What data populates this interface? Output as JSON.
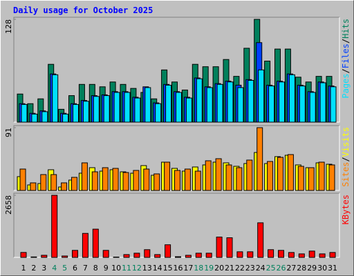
{
  "title": "Daily usage for October 2025",
  "chart_data": [
    {
      "type": "bar",
      "ylim": [
        0,
        128
      ],
      "yticks": [
        128
      ],
      "legend_separator": "/",
      "series": [
        {
          "name": "Hits",
          "color": "#00805c",
          "values": [
            35,
            23,
            29,
            72,
            16,
            33,
            47,
            47,
            44,
            50,
            47,
            42,
            37,
            29,
            65,
            50,
            40,
            72,
            69,
            69,
            78,
            57,
            92,
            128,
            76,
            91,
            91,
            56,
            50,
            57,
            57
          ]
        },
        {
          "name": "Files",
          "color": "#0040ff",
          "values": [
            23,
            11,
            14,
            60,
            11,
            23,
            27,
            33,
            34,
            38,
            38,
            31,
            44,
            24,
            47,
            38,
            31,
            55,
            44,
            48,
            51,
            46,
            53,
            99,
            46,
            51,
            60,
            46,
            38,
            50,
            45
          ]
        },
        {
          "name": "Pages",
          "color": "#00e0ff",
          "values": [
            22,
            10,
            13,
            59,
            10,
            22,
            26,
            32,
            33,
            37,
            37,
            30,
            43,
            23,
            46,
            37,
            30,
            54,
            43,
            47,
            50,
            43,
            52,
            65,
            45,
            50,
            59,
            45,
            37,
            49,
            44
          ]
        }
      ]
    },
    {
      "type": "bar",
      "ylim": [
        0,
        91
      ],
      "yticks": [
        91
      ],
      "legend_separator": "/",
      "series": [
        {
          "name": "Visits",
          "color": "#ffff00",
          "values": [
            20,
            8,
            10,
            30,
            5,
            15,
            25,
            33,
            28,
            30,
            27,
            25,
            36,
            22,
            41,
            32,
            28,
            34,
            37,
            41,
            40,
            35,
            39,
            55,
            39,
            49,
            51,
            37,
            33,
            40,
            38
          ]
        },
        {
          "name": "Sites",
          "color": "#ff8000",
          "values": [
            31,
            11,
            23,
            23,
            11,
            19,
            40,
            27,
            33,
            32,
            26,
            29,
            31,
            24,
            41,
            29,
            31,
            28,
            43,
            46,
            37,
            33,
            44,
            91,
            42,
            48,
            52,
            35,
            33,
            41,
            37
          ]
        }
      ]
    },
    {
      "type": "bar",
      "ylim": [
        0,
        2658
      ],
      "yticks": [
        2658
      ],
      "series": [
        {
          "name": "KBytes",
          "color": "#ff0000",
          "values": [
            211,
            20,
            90,
            2658,
            60,
            300,
            1027,
            1208,
            300,
            15,
            120,
            180,
            330,
            120,
            540,
            30,
            90,
            180,
            180,
            870,
            840,
            240,
            240,
            1480,
            330,
            300,
            210,
            150,
            270,
            150,
            210
          ]
        }
      ],
      "categories": [
        "1",
        "2",
        "3",
        "4",
        "5",
        "6",
        "7",
        "8",
        "9",
        "10",
        "11",
        "12",
        "13",
        "14",
        "15",
        "16",
        "17",
        "18",
        "19",
        "20",
        "21",
        "22",
        "23",
        "24",
        "25",
        "26",
        "27",
        "28",
        "29",
        "30",
        "31"
      ],
      "category_colors": [
        "#000000",
        "#000000",
        "#000000",
        "#00805c",
        "#00805c",
        "#000000",
        "#000000",
        "#000000",
        "#000000",
        "#000000",
        "#00805c",
        "#00805c",
        "#000000",
        "#000000",
        "#000000",
        "#000000",
        "#000000",
        "#00805c",
        "#00805c",
        "#000000",
        "#000000",
        "#000000",
        "#000000",
        "#000000",
        "#00805c",
        "#00805c",
        "#000000",
        "#000000",
        "#000000",
        "#000000",
        "#000000"
      ]
    }
  ]
}
